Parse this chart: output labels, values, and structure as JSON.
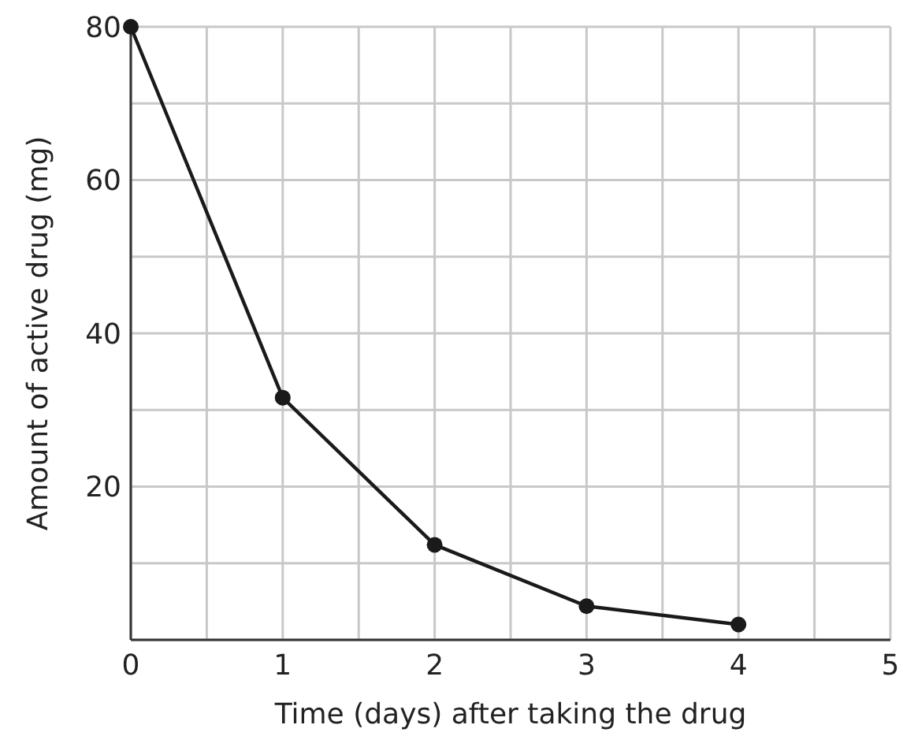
{
  "chart_data": {
    "type": "line",
    "xlabel": "Time (days) after taking the drug",
    "ylabel": "Amount of active drug (mg)",
    "x": [
      0,
      1,
      2,
      3,
      4
    ],
    "series": [
      {
        "color": "#1a1a1a",
        "values": [
          80,
          31.6,
          12.4,
          4.4,
          2.0
        ]
      }
    ],
    "xlim": [
      0,
      5
    ],
    "xticks": [
      0,
      {
        "value": 0.5,
        "label": null
      },
      1,
      {
        "value": 1.5,
        "label": null
      },
      2,
      {
        "value": 2.5,
        "label": null
      },
      3,
      {
        "value": 3.5,
        "label": null
      },
      4,
      {
        "value": 4.5,
        "label": null
      },
      5
    ],
    "ylim": [
      0,
      80
    ],
    "yticks": [
      {
        "value": 0,
        "label": null
      },
      {
        "value": 10,
        "label": null
      },
      20,
      {
        "value": 30,
        "label": null
      },
      40,
      {
        "value": 50,
        "label": null
      },
      60,
      {
        "value": 70,
        "label": null
      },
      80
    ],
    "grid": true,
    "marker": "circle",
    "line_style": "solid"
  }
}
